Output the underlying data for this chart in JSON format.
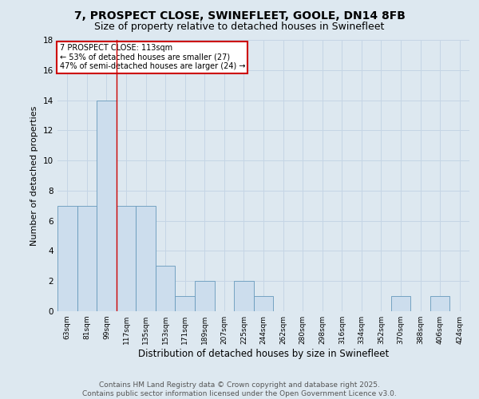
{
  "title1": "7, PROSPECT CLOSE, SWINEFLEET, GOOLE, DN14 8FB",
  "title2": "Size of property relative to detached houses in Swinefleet",
  "xlabel": "Distribution of detached houses by size in Swinefleet",
  "ylabel": "Number of detached properties",
  "footer1": "Contains HM Land Registry data © Crown copyright and database right 2025.",
  "footer2": "Contains public sector information licensed under the Open Government Licence v3.0.",
  "categories": [
    "63sqm",
    "81sqm",
    "99sqm",
    "117sqm",
    "135sqm",
    "153sqm",
    "171sqm",
    "189sqm",
    "207sqm",
    "225sqm",
    "244sqm",
    "262sqm",
    "280sqm",
    "298sqm",
    "316sqm",
    "334sqm",
    "352sqm",
    "370sqm",
    "388sqm",
    "406sqm",
    "424sqm"
  ],
  "values": [
    7,
    7,
    14,
    7,
    7,
    3,
    1,
    2,
    0,
    2,
    1,
    0,
    0,
    0,
    0,
    0,
    0,
    1,
    0,
    1,
    0
  ],
  "bar_color": "#ccdded",
  "bar_edge_color": "#6699bb",
  "red_line_x": 2.5,
  "annotation_line1": "7 PROSPECT CLOSE: 113sqm",
  "annotation_line2": "← 53% of detached houses are smaller (27)",
  "annotation_line3": "47% of semi-detached houses are larger (24) →",
  "annotation_box_color": "#ffffff",
  "annotation_box_edge": "#cc0000",
  "ylim": [
    0,
    18
  ],
  "yticks": [
    0,
    2,
    4,
    6,
    8,
    10,
    12,
    14,
    16,
    18
  ],
  "grid_color": "#c5d5e5",
  "bg_color": "#dde8f0",
  "title_fontsize": 10,
  "subtitle_fontsize": 9,
  "footer_fontsize": 6.5
}
